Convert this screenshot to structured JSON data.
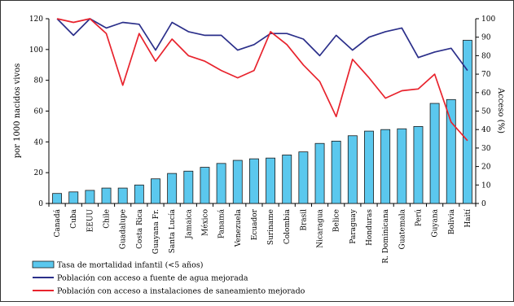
{
  "chart_data": {
    "type": "bar",
    "categories": [
      "Canadá",
      "Cuba",
      "EEUU",
      "Chile",
      "Guadalupe",
      "Costa Rica",
      "Guayana Fr.",
      "Santa Lucía",
      "Jamaica",
      "México",
      "Panamá",
      "Venezuela",
      "Ecuador",
      "Suriname",
      "Colombia",
      "Brasil",
      "Nicaragua",
      "Belice",
      "Paraguay",
      "Honduras",
      "R. Dominicana",
      "Guatemala",
      "Perú",
      "Guyana",
      "Bolivia",
      "Haití"
    ],
    "series": [
      {
        "name": "Tasa de mortalidad infantil (<5 años)",
        "type": "bar",
        "axis": "left",
        "color": "#5bc8ee",
        "values": [
          6.5,
          7.5,
          8.5,
          10,
          10,
          12,
          16,
          19.5,
          21,
          23.5,
          26,
          28,
          29,
          29.5,
          31.5,
          33.5,
          39,
          40.5,
          44,
          47,
          48,
          48.5,
          50,
          65,
          67.5,
          106
        ]
      },
      {
        "name": "Población con acceso a fuente de agua mejorada",
        "type": "line",
        "axis": "right",
        "color": "#2b2f8a",
        "values": [
          100,
          91,
          100,
          95,
          98,
          97,
          83,
          98,
          93,
          91,
          91,
          83,
          86,
          92,
          92,
          89,
          80,
          91,
          83,
          90,
          93,
          95,
          79,
          82,
          84,
          72
        ]
      },
      {
        "name": "Población con acceso a instalaciones de saneamiento mejorado",
        "type": "line",
        "axis": "right",
        "color": "#e8232d",
        "values": [
          100,
          98,
          100,
          92,
          64,
          92,
          77,
          89,
          80,
          77,
          72,
          68,
          72,
          93,
          86,
          75,
          66,
          47,
          78,
          68,
          57,
          61,
          62,
          70,
          44,
          34
        ]
      }
    ],
    "ylabel": "por 1000 nacidos vivos",
    "y2label": "Acceso (%)",
    "ylim": [
      0,
      120
    ],
    "yticks": [
      0,
      20,
      40,
      60,
      80,
      100,
      120
    ],
    "y2lim": [
      0,
      100
    ],
    "y2ticks": [
      0,
      10,
      20,
      30,
      40,
      50,
      60,
      70,
      80,
      90,
      100
    ],
    "grid": false,
    "legend_position": "bottom-left"
  },
  "legend": [
    {
      "label": "Tasa de mortalidad infantil (<5 años)",
      "kind": "bar",
      "color": "#5bc8ee"
    },
    {
      "label": "Población con acceso a fuente de agua mejorada",
      "kind": "line",
      "color": "#2b2f8a"
    },
    {
      "label": "Población con acceso a instalaciones de saneamiento mejorado",
      "kind": "line",
      "color": "#e8232d"
    }
  ]
}
